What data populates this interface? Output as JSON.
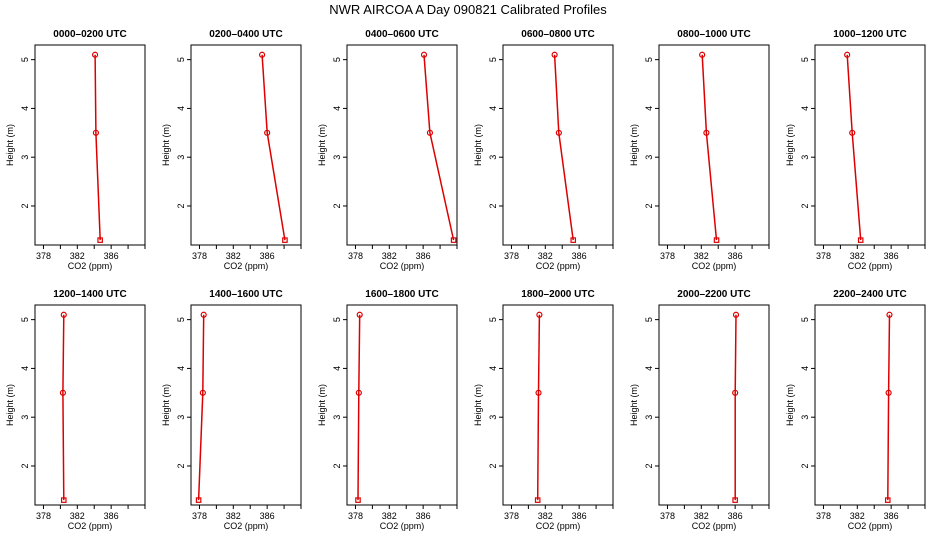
{
  "chart_data": {
    "type": "line",
    "title": "NWR AIRCOA A  Day 090821  Calibrated Profiles",
    "xlabel": "CO2 (ppm)",
    "ylabel": "Height (m)",
    "xlim": [
      377,
      390
    ],
    "ylim": [
      1.2,
      5.3
    ],
    "xticks": [
      378,
      380,
      382,
      384,
      386,
      388,
      390
    ],
    "xtick_labels": [
      "378",
      "382",
      "386"
    ],
    "yticks": [
      2,
      3,
      4,
      5
    ],
    "heights": [
      5.1,
      3.5,
      1.3
    ],
    "line_color": "#dd0000",
    "panels": [
      {
        "title": "0000–0200 UTC",
        "x": [
          384.1,
          384.2,
          384.7
        ]
      },
      {
        "title": "0200–0400 UTC",
        "x": [
          385.4,
          386.0,
          388.1
        ]
      },
      {
        "title": "0400–0600 UTC",
        "x": [
          386.1,
          386.8,
          389.6
        ]
      },
      {
        "title": "0600–0800 UTC",
        "x": [
          383.1,
          383.6,
          385.3
        ]
      },
      {
        "title": "0800–1000 UTC",
        "x": [
          382.1,
          382.6,
          383.8
        ]
      },
      {
        "title": "1000–1200 UTC",
        "x": [
          380.8,
          381.4,
          382.4
        ]
      },
      {
        "title": "1200–1400 UTC",
        "x": [
          380.4,
          380.3,
          380.4
        ]
      },
      {
        "title": "1400–1600 UTC",
        "x": [
          378.5,
          378.4,
          377.9
        ]
      },
      {
        "title": "1600–1800 UTC",
        "x": [
          378.5,
          378.4,
          378.3
        ]
      },
      {
        "title": "1800–2000 UTC",
        "x": [
          381.3,
          381.2,
          381.1
        ]
      },
      {
        "title": "2000–2200 UTC",
        "x": [
          386.1,
          386.0,
          386.0
        ]
      },
      {
        "title": "2200–2400 UTC",
        "x": [
          385.8,
          385.7,
          385.6
        ]
      }
    ]
  }
}
